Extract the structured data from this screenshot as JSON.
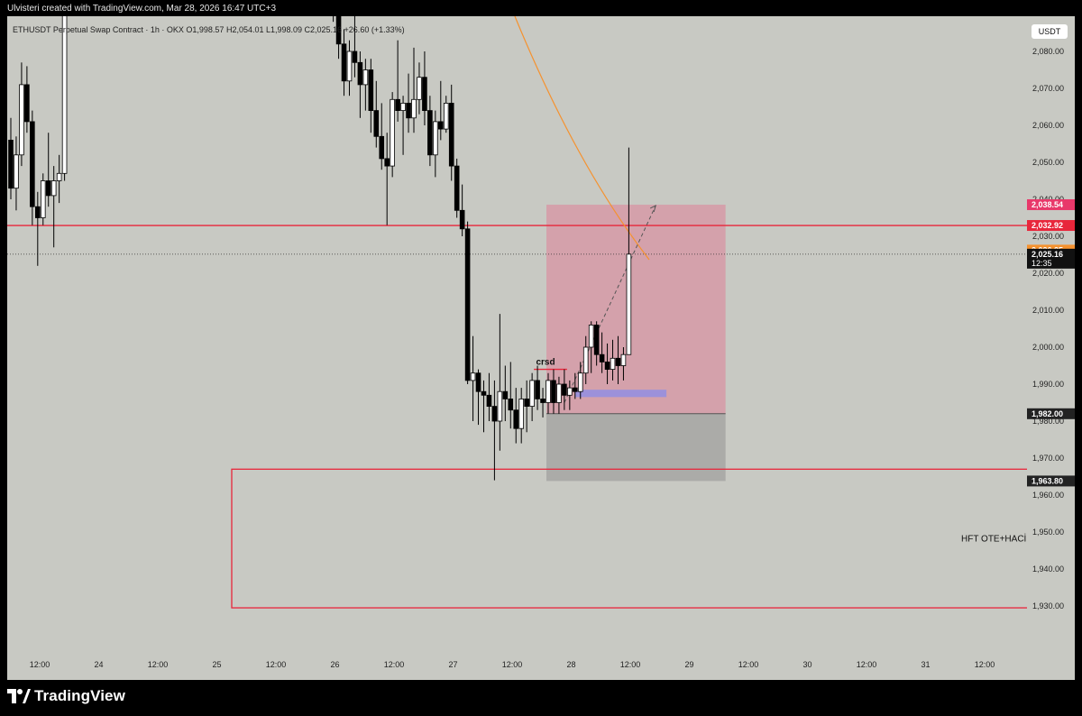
{
  "credit": "Ulvisteri created with TradingView.com, Mar 28, 2026 16:47 UTC+3",
  "legend": "ETHUSDT Perpetual Swap Contract · 1h · OKX  O1,998.57  H2,054.01  L1,998.09  C2,025.16  +26.60 (+1.33%)",
  "currency": "USDT",
  "brand": "TradingView",
  "brand_icon": "tradingview-logo-icon",
  "colors": {
    "background": "#c8c9c3",
    "red_line": "#e8263b",
    "zone_pink": "#e2708f",
    "zone_gray": "#7f8080",
    "ma_orange": "#f5922f",
    "fvg_blue": "#8d8de6"
  },
  "annotations": {
    "crsd": "crsd",
    "hft": "HFT OTE+HACİ"
  },
  "chart_data": {
    "type": "candlestick",
    "symbol": "ETHUSDT Perpetual Swap Contract",
    "timeframe": "1h",
    "exchange": "OKX",
    "y_ticks": [
      "2,080.00",
      "2,070.00",
      "2,060.00",
      "2,050.00",
      "2,040.00",
      "2,030.00",
      "2,020.00",
      "2,010.00",
      "2,000.00",
      "1,990.00",
      "1,980.00",
      "1,970.00",
      "1,960.00",
      "1,950.00",
      "1,940.00",
      "1,930.00"
    ],
    "x_ticks": [
      "12:00",
      "24",
      "12:00",
      "25",
      "12:00",
      "26",
      "12:00",
      "27",
      "12:00",
      "28",
      "12:00",
      "29",
      "12:00",
      "30",
      "12:00",
      "31",
      "12:00"
    ],
    "price_labels": [
      {
        "text": "2,038.54",
        "value": 2038.54,
        "color": "#e8386a"
      },
      {
        "text": "2,032.92",
        "value": 2032.92,
        "color": "#e8263b"
      },
      {
        "text": "2,026.25",
        "value": 2026.25,
        "color": "#f5922f"
      },
      {
        "text": "2,025.16",
        "value": 2025.16,
        "color": "#111111",
        "sub": "12:35"
      },
      {
        "text": "1,982.00",
        "value": 1982.0,
        "color": "#222222"
      },
      {
        "text": "1,963.80",
        "value": 1963.8,
        "color": "#222222"
      }
    ],
    "levels": {
      "red_line": 2032.92,
      "current": 2025.16,
      "zone_entry": 1982.0,
      "zone_stop": 1963.8,
      "zone_target": 2038.54,
      "box_top": 1967.0,
      "box_bottom": 1929.5
    },
    "candles": [
      {
        "t": 0,
        "o": 2056,
        "h": 2062,
        "l": 2040,
        "c": 2043
      },
      {
        "t": 1,
        "o": 2043,
        "h": 2057,
        "l": 2037,
        "c": 2052
      },
      {
        "t": 2,
        "o": 2052,
        "h": 2077,
        "l": 2049,
        "c": 2071
      },
      {
        "t": 3,
        "o": 2071,
        "h": 2076,
        "l": 2058,
        "c": 2061
      },
      {
        "t": 4,
        "o": 2061,
        "h": 2064,
        "l": 2033,
        "c": 2038
      },
      {
        "t": 5,
        "o": 2038,
        "h": 2042,
        "l": 2022,
        "c": 2035
      },
      {
        "t": 6,
        "o": 2035,
        "h": 2047,
        "l": 2033,
        "c": 2045
      },
      {
        "t": 7,
        "o": 2045,
        "h": 2058,
        "l": 2038,
        "c": 2041
      },
      {
        "t": 8,
        "o": 2041,
        "h": 2049,
        "l": 2027,
        "c": 2045
      },
      {
        "t": 9,
        "o": 2045,
        "h": 2052,
        "l": 2039,
        "c": 2047
      },
      {
        "t": 10,
        "o": 2047,
        "h": 2107,
        "l": 2045,
        "c": 2100
      },
      {
        "t": 60,
        "o": 2098,
        "h": 2112,
        "l": 2088,
        "c": 2092
      },
      {
        "t": 61,
        "o": 2092,
        "h": 2100,
        "l": 2078,
        "c": 2082
      },
      {
        "t": 62,
        "o": 2082,
        "h": 2086,
        "l": 2068,
        "c": 2072
      },
      {
        "t": 63,
        "o": 2072,
        "h": 2083,
        "l": 2068,
        "c": 2080
      },
      {
        "t": 64,
        "o": 2080,
        "h": 2093,
        "l": 2073,
        "c": 2077
      },
      {
        "t": 65,
        "o": 2077,
        "h": 2080,
        "l": 2062,
        "c": 2071
      },
      {
        "t": 66,
        "o": 2071,
        "h": 2078,
        "l": 2064,
        "c": 2075
      },
      {
        "t": 67,
        "o": 2075,
        "h": 2078,
        "l": 2058,
        "c": 2064
      },
      {
        "t": 68,
        "o": 2064,
        "h": 2072,
        "l": 2054,
        "c": 2057
      },
      {
        "t": 69,
        "o": 2057,
        "h": 2066,
        "l": 2048,
        "c": 2051
      },
      {
        "t": 70,
        "o": 2051,
        "h": 2058,
        "l": 2033,
        "c": 2049
      },
      {
        "t": 71,
        "o": 2049,
        "h": 2069,
        "l": 2046,
        "c": 2067
      },
      {
        "t": 72,
        "o": 2067,
        "h": 2083,
        "l": 2061,
        "c": 2064
      },
      {
        "t": 73,
        "o": 2064,
        "h": 2068,
        "l": 2052,
        "c": 2066
      },
      {
        "t": 74,
        "o": 2066,
        "h": 2074,
        "l": 2058,
        "c": 2062
      },
      {
        "t": 75,
        "o": 2062,
        "h": 2081,
        "l": 2058,
        "c": 2067
      },
      {
        "t": 76,
        "o": 2067,
        "h": 2077,
        "l": 2063,
        "c": 2073
      },
      {
        "t": 77,
        "o": 2073,
        "h": 2080,
        "l": 2060,
        "c": 2064
      },
      {
        "t": 78,
        "o": 2064,
        "h": 2068,
        "l": 2049,
        "c": 2052
      },
      {
        "t": 79,
        "o": 2052,
        "h": 2064,
        "l": 2046,
        "c": 2061
      },
      {
        "t": 80,
        "o": 2061,
        "h": 2072,
        "l": 2056,
        "c": 2059
      },
      {
        "t": 81,
        "o": 2059,
        "h": 2068,
        "l": 2058,
        "c": 2066
      },
      {
        "t": 82,
        "o": 2066,
        "h": 2071,
        "l": 2045,
        "c": 2049
      },
      {
        "t": 83,
        "o": 2049,
        "h": 2051,
        "l": 2035,
        "c": 2037
      },
      {
        "t": 84,
        "o": 2037,
        "h": 2044,
        "l": 2030,
        "c": 2032
      },
      {
        "t": 85,
        "o": 2032,
        "h": 2034,
        "l": 1990,
        "c": 1991
      },
      {
        "t": 86,
        "o": 1991,
        "h": 2003,
        "l": 1980,
        "c": 1993
      },
      {
        "t": 87,
        "o": 1993,
        "h": 1994,
        "l": 1979,
        "c": 1988
      },
      {
        "t": 88,
        "o": 1988,
        "h": 1991,
        "l": 1977,
        "c": 1987
      },
      {
        "t": 89,
        "o": 1987,
        "h": 1993,
        "l": 1980,
        "c": 1984
      },
      {
        "t": 90,
        "o": 1984,
        "h": 1991,
        "l": 1964,
        "c": 1980
      },
      {
        "t": 91,
        "o": 1980,
        "h": 2009,
        "l": 1972,
        "c": 1988
      },
      {
        "t": 92,
        "o": 1988,
        "h": 1995,
        "l": 1980,
        "c": 1986
      },
      {
        "t": 93,
        "o": 1986,
        "h": 1996,
        "l": 1978,
        "c": 1983
      },
      {
        "t": 94,
        "o": 1983,
        "h": 1989,
        "l": 1974,
        "c": 1978
      },
      {
        "t": 95,
        "o": 1978,
        "h": 1989,
        "l": 1974,
        "c": 1986
      },
      {
        "t": 96,
        "o": 1986,
        "h": 1991,
        "l": 1977,
        "c": 1984
      },
      {
        "t": 97,
        "o": 1984,
        "h": 1993,
        "l": 1980,
        "c": 1991
      },
      {
        "t": 98,
        "o": 1991,
        "h": 1995,
        "l": 1983,
        "c": 1986
      },
      {
        "t": 99,
        "o": 1986,
        "h": 1989,
        "l": 1981,
        "c": 1985
      },
      {
        "t": 100,
        "o": 1985,
        "h": 1993,
        "l": 1982,
        "c": 1991
      },
      {
        "t": 101,
        "o": 1991,
        "h": 1994,
        "l": 1982,
        "c": 1985
      },
      {
        "t": 102,
        "o": 1985,
        "h": 1992,
        "l": 1982,
        "c": 1990
      },
      {
        "t": 103,
        "o": 1990,
        "h": 1994,
        "l": 1983,
        "c": 1987
      },
      {
        "t": 104,
        "o": 1987,
        "h": 1991,
        "l": 1983,
        "c": 1989
      },
      {
        "t": 105,
        "o": 1989,
        "h": 1993,
        "l": 1986,
        "c": 1988
      },
      {
        "t": 106,
        "o": 1988,
        "h": 1996,
        "l": 1986,
        "c": 1993
      },
      {
        "t": 107,
        "o": 1993,
        "h": 2003,
        "l": 1990,
        "c": 2000
      },
      {
        "t": 108,
        "o": 2000,
        "h": 2007,
        "l": 1993,
        "c": 2006
      },
      {
        "t": 109,
        "o": 2006,
        "h": 2007,
        "l": 1995,
        "c": 1998
      },
      {
        "t": 110,
        "o": 1998,
        "h": 2004,
        "l": 1993,
        "c": 1996
      },
      {
        "t": 111,
        "o": 1996,
        "h": 2001,
        "l": 1990,
        "c": 1994
      },
      {
        "t": 112,
        "o": 1994,
        "h": 2002,
        "l": 1991,
        "c": 1997
      },
      {
        "t": 113,
        "o": 1997,
        "h": 2003,
        "l": 1990,
        "c": 1995
      },
      {
        "t": 114,
        "o": 1995,
        "h": 2000,
        "l": 1991,
        "c": 1998
      },
      {
        "t": 115,
        "o": 1998,
        "h": 2054,
        "l": 1998,
        "c": 2025.16
      }
    ]
  }
}
